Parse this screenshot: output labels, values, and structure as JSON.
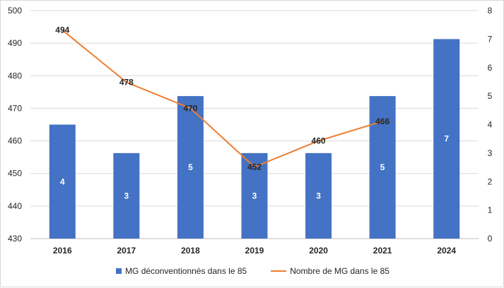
{
  "chart_data": {
    "type": "bar",
    "categories": [
      "2016",
      "2017",
      "2018",
      "2019",
      "2020",
      "2021",
      "2024"
    ],
    "series": [
      {
        "name": "MG déconventionnés dans le 85",
        "type": "bar",
        "axis": "secondary",
        "values": [
          4,
          3,
          5,
          3,
          3,
          5,
          7
        ],
        "labels": [
          "4",
          "3",
          "5",
          "3",
          "3",
          "5",
          "7"
        ],
        "color": "#4472c4"
      },
      {
        "name": "Nombre de MG dans le 85",
        "type": "line",
        "axis": "primary",
        "values": [
          494,
          478,
          470,
          452,
          460,
          466,
          null
        ],
        "labels": [
          "494",
          "478",
          "470",
          "452",
          "460",
          "466",
          ""
        ],
        "color": "#ed7d31"
      }
    ],
    "primary_axis": {
      "ylim": [
        430,
        500
      ],
      "ticks": [
        "430",
        "440",
        "450",
        "460",
        "470",
        "480",
        "490",
        "500"
      ]
    },
    "secondary_axis": {
      "ylim": [
        0,
        8
      ],
      "ticks": [
        "0",
        "1",
        "2",
        "3",
        "4",
        "5",
        "6",
        "7",
        "8"
      ]
    },
    "title": "",
    "xlabel": "",
    "ylabel": "",
    "grid": true,
    "legend": "bottom"
  }
}
